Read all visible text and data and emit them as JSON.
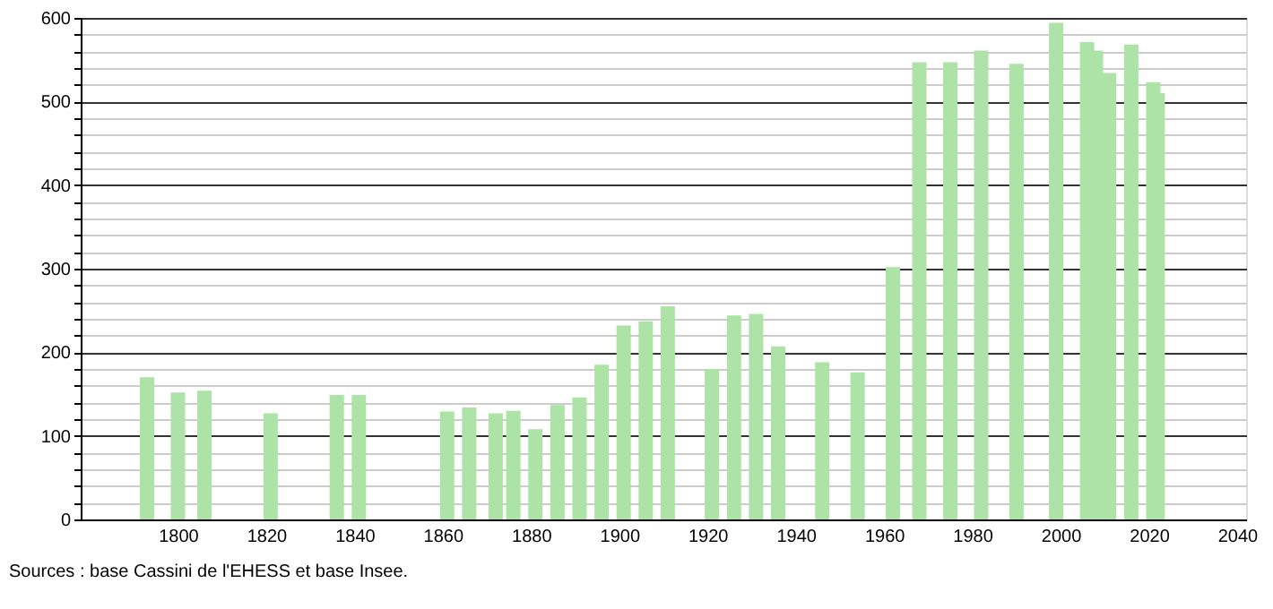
{
  "chart_data": {
    "type": "bar",
    "x": [
      1793,
      1800,
      1806,
      1821,
      1836,
      1841,
      1861,
      1866,
      1872,
      1876,
      1881,
      1886,
      1891,
      1896,
      1901,
      1906,
      1911,
      1921,
      1926,
      1931,
      1936,
      1946,
      1954,
      1962,
      1968,
      1975,
      1982,
      1990,
      1999,
      2006,
      2008,
      2011,
      2016,
      2021,
      2022
    ],
    "values": [
      170,
      152,
      154,
      127,
      149,
      149,
      129,
      134,
      127,
      130,
      108,
      137,
      146,
      185,
      232,
      237,
      255,
      180,
      244,
      246,
      207,
      188,
      176,
      302,
      547,
      547,
      561,
      545,
      594,
      571,
      561,
      534,
      568,
      523,
      510
    ],
    "color": "#ade3a6",
    "xlim": [
      1780,
      2040
    ],
    "xticks": [
      1800,
      1820,
      1840,
      1860,
      1880,
      1900,
      1920,
      1940,
      1960,
      1980,
      2000,
      2020,
      2040
    ],
    "ylim": [
      0,
      600
    ],
    "yticks": [
      0,
      {
        "value": 20,
        "label": null
      },
      {
        "value": 40,
        "label": null
      },
      {
        "value": 60,
        "label": null
      },
      {
        "value": 80,
        "label": null
      },
      100,
      {
        "value": 120,
        "label": null
      },
      {
        "value": 140,
        "label": null
      },
      {
        "value": 160,
        "label": null
      },
      {
        "value": 180,
        "label": null
      },
      200,
      {
        "value": 220,
        "label": null
      },
      {
        "value": 240,
        "label": null
      },
      {
        "value": 260,
        "label": null
      },
      {
        "value": 280,
        "label": null
      },
      300,
      {
        "value": 320,
        "label": null
      },
      {
        "value": 340,
        "label": null
      },
      {
        "value": 360,
        "label": null
      },
      {
        "value": 380,
        "label": null
      },
      400,
      {
        "value": 420,
        "label": null
      },
      {
        "value": 440,
        "label": null
      },
      {
        "value": 460,
        "label": null
      },
      {
        "value": 480,
        "label": null
      },
      500,
      {
        "value": 520,
        "label": null
      },
      {
        "value": 540,
        "label": null
      },
      {
        "value": 560,
        "label": null
      },
      {
        "value": 580,
        "label": null
      },
      600
    ],
    "grid": "y",
    "annotations": [
      "Sources : base Cassini de l'EHESS et base Insee."
    ]
  }
}
